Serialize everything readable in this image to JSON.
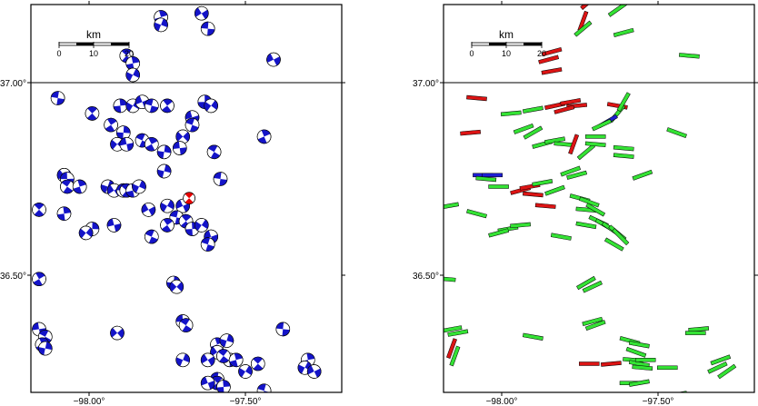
{
  "maps": [
    {
      "id": "left",
      "title": "",
      "x_ticks": [
        {
          "lon": -98.0,
          "label": "−98.00°"
        },
        {
          "lon": -97.5,
          "label": "−97.50°"
        }
      ],
      "y_ticks": [
        {
          "lat": 37.0,
          "label": "37.00°"
        },
        {
          "lat": 36.5,
          "label": "36.50°"
        }
      ],
      "scale_bar": {
        "title": "km",
        "labels": [
          "0",
          "10",
          "20"
        ]
      },
      "symbol_type": "focal-mechanism",
      "colors": {
        "primary": "#1414c8",
        "highlight": "#e60000"
      },
      "mechanisms": [
        [
          -97.87,
          37.22
        ],
        [
          -97.83,
          37.22
        ],
        [
          -97.77,
          37.17
        ],
        [
          -97.77,
          37.15
        ],
        [
          -97.64,
          37.18
        ],
        [
          -97.62,
          37.14
        ],
        [
          -97.88,
          37.07
        ],
        [
          -97.86,
          37.05
        ],
        [
          -97.86,
          37.02
        ],
        [
          -97.41,
          37.06
        ],
        [
          -98.1,
          36.96
        ],
        [
          -97.99,
          36.92
        ],
        [
          -97.9,
          36.94
        ],
        [
          -97.86,
          36.94
        ],
        [
          -97.83,
          36.95
        ],
        [
          -97.8,
          36.94
        ],
        [
          -97.75,
          36.94
        ],
        [
          -97.63,
          36.95
        ],
        [
          -97.61,
          36.94
        ],
        [
          -97.67,
          36.91
        ],
        [
          -97.67,
          36.89
        ],
        [
          -97.93,
          36.89
        ],
        [
          -97.89,
          36.87
        ],
        [
          -97.91,
          36.84
        ],
        [
          -97.88,
          36.84
        ],
        [
          -97.83,
          36.85
        ],
        [
          -97.8,
          36.84
        ],
        [
          -97.76,
          36.82
        ],
        [
          -97.7,
          36.86
        ],
        [
          -97.71,
          36.83
        ],
        [
          -97.6,
          36.82
        ],
        [
          -97.44,
          36.86
        ],
        [
          -97.76,
          36.77
        ],
        [
          -98.08,
          36.76
        ],
        [
          -98.07,
          36.75
        ],
        [
          -98.07,
          36.73
        ],
        [
          -98.03,
          36.73
        ],
        [
          -97.94,
          36.73
        ],
        [
          -97.92,
          36.72
        ],
        [
          -97.89,
          36.72
        ],
        [
          -97.88,
          36.72
        ],
        [
          -97.86,
          36.72
        ],
        [
          -97.84,
          36.73
        ],
        [
          -97.81,
          36.67
        ],
        [
          -97.58,
          36.75
        ],
        [
          -98.16,
          36.67
        ],
        [
          -98.08,
          36.66
        ],
        [
          -97.75,
          36.68
        ],
        [
          -97.7,
          36.68
        ],
        [
          -97.72,
          36.65
        ],
        [
          -97.69,
          36.64
        ],
        [
          -97.67,
          36.62
        ],
        [
          -97.64,
          36.63
        ],
        [
          -97.61,
          36.6
        ],
        [
          -97.62,
          36.58
        ],
        [
          -97.75,
          36.63
        ],
        [
          -97.99,
          36.62
        ],
        [
          -98.01,
          36.61
        ],
        [
          -97.92,
          36.63
        ],
        [
          -97.8,
          36.6
        ],
        [
          -98.16,
          36.49
        ],
        [
          -97.73,
          36.48
        ],
        [
          -97.72,
          36.47
        ],
        [
          -98.16,
          36.36
        ],
        [
          -98.14,
          36.34
        ],
        [
          -98.15,
          36.32
        ],
        [
          -98.14,
          36.31
        ],
        [
          -97.91,
          36.35
        ],
        [
          -97.7,
          36.38
        ],
        [
          -97.69,
          36.37
        ],
        [
          -97.59,
          36.32
        ],
        [
          -97.56,
          36.33
        ],
        [
          -97.59,
          36.3
        ],
        [
          -97.55,
          36.28
        ],
        [
          -97.57,
          36.29
        ],
        [
          -97.53,
          36.28
        ],
        [
          -97.7,
          36.28
        ],
        [
          -97.62,
          36.28
        ],
        [
          -97.38,
          36.36
        ],
        [
          -97.46,
          36.27
        ],
        [
          -97.3,
          36.28
        ],
        [
          -97.31,
          36.26
        ],
        [
          -97.28,
          36.25
        ],
        [
          -97.59,
          36.23
        ],
        [
          -97.59,
          36.22
        ],
        [
          -97.57,
          36.21
        ],
        [
          -97.5,
          36.25
        ],
        [
          -97.62,
          36.22
        ],
        [
          -97.44,
          36.2
        ]
      ],
      "highlight_mechanisms": [
        [
          -97.68,
          36.7
        ]
      ]
    },
    {
      "id": "right",
      "title": "",
      "x_ticks": [
        {
          "lon": -98.0,
          "label": "−98.00°"
        },
        {
          "lon": -97.5,
          "label": "−97.50°"
        }
      ],
      "y_ticks": [
        {
          "lat": 37.0,
          "label": "37.00°"
        },
        {
          "lat": 36.5,
          "label": "36.50°"
        }
      ],
      "scale_bar": {
        "title": "km",
        "labels": [
          "0",
          "10",
          "20"
        ]
      },
      "symbol_type": "stress-orientation-bar",
      "colors": {
        "green": "#34e234",
        "red": "#dc1414",
        "blue": "#1e1ed2",
        "outline": "#000000"
      },
      "bars": [
        {
          "lon": -97.86,
          "lat": 37.22,
          "angle": -20,
          "color": "green"
        },
        {
          "lon": -97.83,
          "lat": 37.22,
          "angle": -10,
          "color": "green"
        },
        {
          "lon": -97.72,
          "lat": 37.21,
          "angle": -40,
          "color": "red"
        },
        {
          "lon": -97.63,
          "lat": 37.19,
          "angle": -35,
          "color": "green"
        },
        {
          "lon": -97.74,
          "lat": 37.16,
          "angle": -70,
          "color": "red"
        },
        {
          "lon": -97.74,
          "lat": 37.14,
          "angle": -40,
          "color": "green"
        },
        {
          "lon": -97.61,
          "lat": 37.13,
          "angle": -15,
          "color": "green"
        },
        {
          "lon": -97.84,
          "lat": 37.08,
          "angle": -15,
          "color": "red"
        },
        {
          "lon": -97.85,
          "lat": 37.06,
          "angle": -15,
          "color": "red"
        },
        {
          "lon": -97.84,
          "lat": 37.03,
          "angle": -10,
          "color": "red"
        },
        {
          "lon": -97.4,
          "lat": 37.07,
          "angle": 5,
          "color": "green"
        },
        {
          "lon": -98.08,
          "lat": 36.96,
          "angle": 5,
          "color": "red"
        },
        {
          "lon": -97.97,
          "lat": 36.92,
          "angle": -5,
          "color": "green"
        },
        {
          "lon": -97.9,
          "lat": 36.93,
          "angle": -10,
          "color": "green"
        },
        {
          "lon": -97.83,
          "lat": 36.94,
          "angle": -12,
          "color": "red"
        },
        {
          "lon": -97.78,
          "lat": 36.95,
          "angle": -10,
          "color": "red"
        },
        {
          "lon": -97.76,
          "lat": 36.94,
          "angle": -5,
          "color": "red"
        },
        {
          "lon": -97.8,
          "lat": 36.93,
          "angle": -15,
          "color": "red"
        },
        {
          "lon": -97.63,
          "lat": 36.94,
          "angle": 10,
          "color": "red"
        },
        {
          "lon": -97.63,
          "lat": 36.92,
          "angle": -50,
          "color": "green"
        },
        {
          "lon": -97.61,
          "lat": 36.95,
          "angle": -60,
          "color": "green"
        },
        {
          "lon": -97.66,
          "lat": 36.9,
          "angle": -30,
          "color": "blue"
        },
        {
          "lon": -97.68,
          "lat": 36.89,
          "angle": -25,
          "color": "green"
        },
        {
          "lon": -98.1,
          "lat": 36.87,
          "angle": -5,
          "color": "red"
        },
        {
          "lon": -97.93,
          "lat": 36.88,
          "angle": -20,
          "color": "green"
        },
        {
          "lon": -97.9,
          "lat": 36.87,
          "angle": -30,
          "color": "green"
        },
        {
          "lon": -97.87,
          "lat": 36.84,
          "angle": -15,
          "color": "green"
        },
        {
          "lon": -97.83,
          "lat": 36.85,
          "angle": -10,
          "color": "green"
        },
        {
          "lon": -97.8,
          "lat": 36.84,
          "angle": 5,
          "color": "green"
        },
        {
          "lon": -97.77,
          "lat": 36.84,
          "angle": -70,
          "color": "red"
        },
        {
          "lon": -97.73,
          "lat": 36.82,
          "angle": -40,
          "color": "green"
        },
        {
          "lon": -97.7,
          "lat": 36.86,
          "angle": 0,
          "color": "green"
        },
        {
          "lon": -97.7,
          "lat": 36.84,
          "angle": 5,
          "color": "green"
        },
        {
          "lon": -97.61,
          "lat": 36.83,
          "angle": 5,
          "color": "green"
        },
        {
          "lon": -97.61,
          "lat": 36.81,
          "angle": 5,
          "color": "green"
        },
        {
          "lon": -97.44,
          "lat": 36.87,
          "angle": 20,
          "color": "green"
        },
        {
          "lon": -97.78,
          "lat": 36.77,
          "angle": -20,
          "color": "green"
        },
        {
          "lon": -97.76,
          "lat": 36.76,
          "angle": -15,
          "color": "green"
        },
        {
          "lon": -98.06,
          "lat": 36.76,
          "angle": 0,
          "color": "blue"
        },
        {
          "lon": -98.05,
          "lat": 36.75,
          "angle": 5,
          "color": "green"
        },
        {
          "lon": -98.03,
          "lat": 36.76,
          "angle": 0,
          "color": "blue"
        },
        {
          "lon": -98.01,
          "lat": 36.73,
          "angle": 0,
          "color": "green"
        },
        {
          "lon": -97.55,
          "lat": 36.76,
          "angle": -20,
          "color": "green"
        },
        {
          "lon": -97.94,
          "lat": 36.72,
          "angle": -15,
          "color": "red"
        },
        {
          "lon": -97.91,
          "lat": 36.73,
          "angle": -10,
          "color": "red"
        },
        {
          "lon": -97.9,
          "lat": 36.71,
          "angle": 5,
          "color": "red"
        },
        {
          "lon": -97.87,
          "lat": 36.74,
          "angle": -10,
          "color": "green"
        },
        {
          "lon": -97.83,
          "lat": 36.72,
          "angle": -20,
          "color": "green"
        },
        {
          "lon": -97.75,
          "lat": 36.7,
          "angle": 15,
          "color": "green"
        },
        {
          "lon": -97.72,
          "lat": 36.69,
          "angle": 20,
          "color": "green"
        },
        {
          "lon": -97.73,
          "lat": 36.67,
          "angle": 5,
          "color": "green"
        },
        {
          "lon": -97.7,
          "lat": 36.67,
          "angle": 30,
          "color": "green"
        },
        {
          "lon": -98.17,
          "lat": 36.68,
          "angle": -10,
          "color": "green"
        },
        {
          "lon": -98.08,
          "lat": 36.66,
          "angle": 15,
          "color": "green"
        },
        {
          "lon": -97.86,
          "lat": 36.68,
          "angle": 5,
          "color": "red"
        },
        {
          "lon": -97.69,
          "lat": 36.64,
          "angle": 25,
          "color": "green"
        },
        {
          "lon": -97.67,
          "lat": 36.63,
          "angle": 30,
          "color": "green"
        },
        {
          "lon": -97.65,
          "lat": 36.62,
          "angle": 35,
          "color": "green"
        },
        {
          "lon": -97.63,
          "lat": 36.61,
          "angle": 40,
          "color": "green"
        },
        {
          "lon": -97.62,
          "lat": 36.6,
          "angle": 45,
          "color": "green"
        },
        {
          "lon": -97.64,
          "lat": 36.58,
          "angle": 30,
          "color": "green"
        },
        {
          "lon": -97.73,
          "lat": 36.63,
          "angle": 10,
          "color": "green"
        },
        {
          "lon": -97.98,
          "lat": 36.62,
          "angle": -10,
          "color": "green"
        },
        {
          "lon": -97.94,
          "lat": 36.63,
          "angle": -5,
          "color": "green"
        },
        {
          "lon": -98.01,
          "lat": 36.61,
          "angle": -15,
          "color": "green"
        },
        {
          "lon": -97.81,
          "lat": 36.6,
          "angle": 10,
          "color": "green"
        },
        {
          "lon": -98.18,
          "lat": 36.49,
          "angle": 5,
          "color": "green"
        },
        {
          "lon": -97.73,
          "lat": 36.48,
          "angle": -30,
          "color": "green"
        },
        {
          "lon": -97.71,
          "lat": 36.47,
          "angle": -25,
          "color": "green"
        },
        {
          "lon": -98.16,
          "lat": 36.36,
          "angle": -10,
          "color": "green"
        },
        {
          "lon": -98.14,
          "lat": 36.35,
          "angle": -10,
          "color": "green"
        },
        {
          "lon": -98.16,
          "lat": 36.31,
          "angle": -70,
          "color": "red"
        },
        {
          "lon": -98.15,
          "lat": 36.29,
          "angle": -70,
          "color": "green"
        },
        {
          "lon": -97.9,
          "lat": 36.34,
          "angle": 10,
          "color": "green"
        },
        {
          "lon": -97.71,
          "lat": 36.38,
          "angle": -15,
          "color": "green"
        },
        {
          "lon": -97.7,
          "lat": 36.37,
          "angle": -20,
          "color": "green"
        },
        {
          "lon": -97.59,
          "lat": 36.33,
          "angle": 15,
          "color": "green"
        },
        {
          "lon": -97.56,
          "lat": 36.32,
          "angle": 10,
          "color": "green"
        },
        {
          "lon": -97.57,
          "lat": 36.3,
          "angle": 20,
          "color": "green"
        },
        {
          "lon": -97.37,
          "lat": 36.36,
          "angle": -5,
          "color": "green"
        },
        {
          "lon": -97.38,
          "lat": 36.35,
          "angle": 0,
          "color": "green"
        },
        {
          "lon": -97.72,
          "lat": 36.27,
          "angle": 0,
          "color": "red"
        },
        {
          "lon": -97.65,
          "lat": 36.27,
          "angle": -5,
          "color": "red"
        },
        {
          "lon": -97.58,
          "lat": 36.28,
          "angle": 5,
          "color": "green"
        },
        {
          "lon": -97.56,
          "lat": 36.27,
          "angle": 10,
          "color": "green"
        },
        {
          "lon": -97.55,
          "lat": 36.26,
          "angle": 5,
          "color": "green"
        },
        {
          "lon": -97.54,
          "lat": 36.28,
          "angle": 0,
          "color": "green"
        },
        {
          "lon": -97.47,
          "lat": 36.26,
          "angle": 0,
          "color": "green"
        },
        {
          "lon": -97.3,
          "lat": 36.28,
          "angle": -20,
          "color": "green"
        },
        {
          "lon": -97.31,
          "lat": 36.26,
          "angle": -25,
          "color": "green"
        },
        {
          "lon": -97.28,
          "lat": 36.25,
          "angle": -35,
          "color": "green"
        },
        {
          "lon": -97.59,
          "lat": 36.22,
          "angle": 0,
          "color": "green"
        },
        {
          "lon": -97.56,
          "lat": 36.22,
          "angle": -10,
          "color": "green"
        },
        {
          "lon": -97.44,
          "lat": 36.19,
          "angle": -10,
          "color": "green"
        },
        {
          "lon": -97.45,
          "lat": 36.18,
          "angle": -5,
          "color": "green"
        }
      ]
    }
  ]
}
